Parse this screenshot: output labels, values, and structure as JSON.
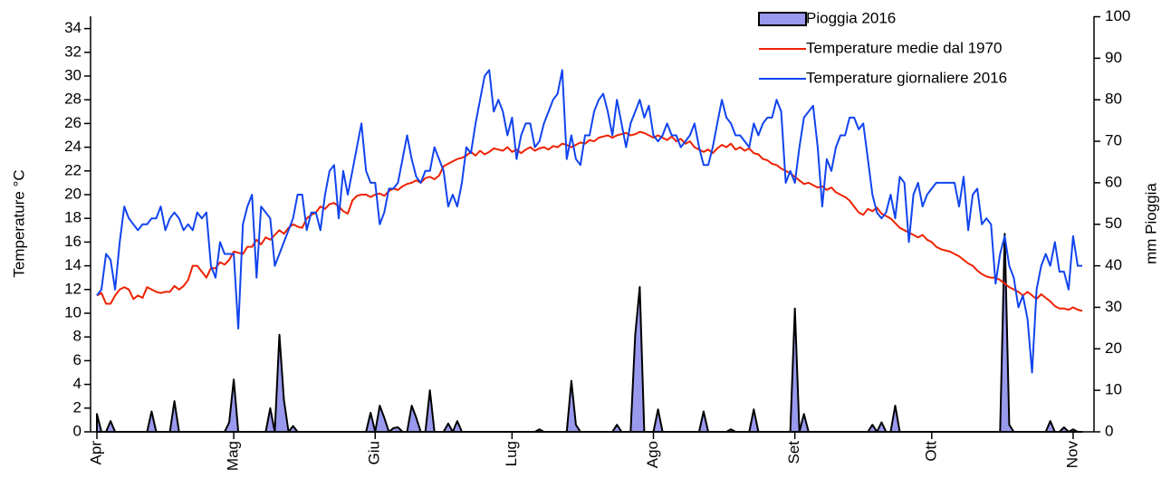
{
  "chart_data": {
    "type": "line",
    "ylabel": "Temperature °C",
    "y2label": "mm Pioggia",
    "xlim": [
      0,
      216
    ],
    "xticks": [
      {
        "value": 0,
        "label": "Apr"
      },
      {
        "value": 30,
        "label": "Mag"
      },
      {
        "value": 61,
        "label": "Giu"
      },
      {
        "value": 91,
        "label": "Lug"
      },
      {
        "value": 122,
        "label": "Ago"
      },
      {
        "value": 153,
        "label": "Set"
      },
      {
        "value": 183,
        "label": "Ott"
      },
      {
        "value": 214,
        "label": "Nov"
      }
    ],
    "ylim": [
      0,
      35
    ],
    "yticks": [
      0,
      2,
      4,
      6,
      8,
      10,
      12,
      14,
      16,
      18,
      20,
      22,
      24,
      26,
      28,
      30,
      32,
      34
    ],
    "y2lim": [
      0,
      100
    ],
    "y2ticks": [
      0,
      10,
      20,
      30,
      40,
      50,
      60,
      70,
      80,
      90,
      100
    ],
    "legend": "top-right",
    "series": [
      {
        "name": "Pioggia 2016",
        "type": "area",
        "axis": "y2",
        "color": "#9999ee",
        "values": [
          4.3,
          0,
          0,
          2.6,
          0,
          0,
          0,
          0,
          0,
          0,
          0,
          0,
          4.9,
          0,
          0,
          0,
          0,
          7.4,
          0,
          0,
          0,
          0,
          0,
          0,
          0,
          0,
          0,
          0,
          0,
          2.3,
          12.6,
          0,
          0,
          0,
          0,
          0,
          0,
          0,
          5.7,
          0,
          23.4,
          7.7,
          0,
          1.4,
          0,
          0,
          0,
          0,
          0,
          0,
          0,
          0,
          0,
          0,
          0,
          0,
          0,
          0,
          0,
          0,
          4.6,
          0,
          6.3,
          3.4,
          0,
          0.9,
          1.1,
          0,
          0,
          6.3,
          3.4,
          0,
          0,
          10,
          0,
          0,
          0,
          2,
          0,
          2.6,
          0,
          0,
          0,
          0,
          0,
          0,
          0,
          0,
          0,
          0,
          0,
          0,
          0,
          0,
          0,
          0,
          0,
          0.6,
          0,
          0,
          0,
          0,
          0,
          0,
          12.3,
          1.7,
          0,
          0,
          0,
          0,
          0,
          0,
          0,
          0,
          1.7,
          0,
          0,
          0,
          23.4,
          34.9,
          0,
          0,
          0,
          5.4,
          0,
          0,
          0,
          0,
          0,
          0,
          0,
          0,
          0,
          4.9,
          0,
          0,
          0,
          0,
          0,
          0.6,
          0,
          0,
          0,
          0,
          5.4,
          0,
          0,
          0,
          0,
          0,
          0,
          0,
          0,
          29.7,
          0,
          4.3,
          0,
          0,
          0,
          0,
          0,
          0,
          0,
          0,
          0,
          0,
          0,
          0,
          0,
          0,
          1.7,
          0,
          2.3,
          0,
          0,
          6.3,
          0,
          0,
          0,
          0,
          0,
          0,
          0,
          0,
          0,
          0,
          0,
          0,
          0,
          0,
          0,
          0,
          0,
          0,
          0,
          0,
          0,
          0,
          0,
          47.7,
          1.7,
          0,
          0,
          0,
          0,
          0,
          0,
          0,
          0,
          2.6,
          0,
          0,
          1.1,
          0,
          0.6,
          0,
          0
        ]
      },
      {
        "name": "Temperature medie dal 1970",
        "color": "#ee2200",
        "values": [
          11.5,
          11.7,
          10.8,
          10.8,
          11.5,
          12,
          12.2,
          12,
          11.2,
          11.5,
          11.3,
          12.2,
          12,
          11.8,
          11.7,
          11.8,
          11.8,
          12.3,
          12,
          12.3,
          12.8,
          14,
          14,
          13.5,
          13,
          13.8,
          13.8,
          14.3,
          14.1,
          14.5,
          15.2,
          15.1,
          15,
          15.6,
          15.6,
          16.2,
          15.8,
          16.4,
          16.2,
          16.6,
          17,
          16.7,
          17.2,
          17.5,
          17.3,
          17.2,
          18,
          18.3,
          18.5,
          19,
          18.8,
          19.2,
          19.3,
          19,
          18.6,
          18.4,
          19.5,
          19.9,
          20,
          20,
          19.8,
          20,
          20.1,
          19.9,
          20.3,
          20.5,
          20.4,
          20.7,
          20.9,
          21,
          21.2,
          21,
          21.4,
          21.5,
          21.3,
          21.6,
          22.4,
          22.6,
          22.8,
          23,
          23.1,
          23.3,
          23.6,
          23.3,
          23.7,
          23.4,
          23.6,
          23.9,
          23.8,
          23.7,
          24,
          23.6,
          23.8,
          23.5,
          23.8,
          24,
          23.7,
          23.9,
          24,
          23.8,
          24.1,
          24,
          24.3,
          24.2,
          24,
          24.2,
          24.4,
          24.3,
          24.6,
          24.5,
          24.8,
          24.9,
          25,
          24.8,
          25,
          25.1,
          25.2,
          25,
          25.1,
          25.3,
          25.2,
          25,
          24.8,
          25,
          24.8,
          24.6,
          24.9,
          24.5,
          24.7,
          24.3,
          24.5,
          24,
          23.8,
          23.6,
          23.8,
          23.5,
          23.9,
          24.2,
          24,
          24.3,
          23.8,
          24,
          23.7,
          23.9,
          23.5,
          23.4,
          23,
          22.9,
          22.6,
          22.5,
          22.2,
          22,
          21.8,
          21.5,
          21.2,
          20.9,
          21,
          20.8,
          20.6,
          20.7,
          20.4,
          20.6,
          20.2,
          20,
          19.8,
          19.5,
          19,
          18.5,
          18.3,
          18.8,
          18.6,
          18.9,
          18.4,
          18.2,
          18,
          17.6,
          17.2,
          17,
          16.8,
          16.6,
          16.4,
          16.6,
          16.2,
          16,
          15.6,
          15.4,
          15.3,
          15.2,
          15,
          14.8,
          14.5,
          14.2,
          14,
          13.6,
          13.3,
          13.1,
          13,
          13,
          12.8,
          12.5,
          12.2,
          12,
          11.8,
          11.5,
          11.8,
          11.5,
          11.2,
          11.6,
          11.3,
          11,
          10.6,
          10.4,
          10.4,
          10.3,
          10.5,
          10.3,
          10.2
        ]
      },
      {
        "name": "Temperature giornaliere 2016",
        "color": "#1144ee",
        "values": [
          11.5,
          12,
          15,
          14.5,
          12,
          16,
          19,
          18,
          17.5,
          17,
          17.5,
          17.5,
          18,
          18,
          19,
          17,
          18,
          18.5,
          18,
          17,
          17.5,
          17,
          18.5,
          18,
          18.5,
          14,
          13,
          16,
          15,
          15,
          15,
          8.7,
          17.5,
          19,
          20,
          13,
          19,
          18.5,
          18,
          14,
          15,
          16,
          17,
          18,
          20,
          20,
          17,
          18.5,
          18.5,
          17,
          20,
          22,
          22.5,
          18,
          22,
          20,
          22,
          24,
          26,
          22,
          21,
          21,
          17.5,
          18.5,
          20.5,
          20.5,
          21,
          23,
          25,
          23,
          21.5,
          21,
          22,
          22,
          24,
          23,
          22,
          19,
          20,
          19,
          21,
          24,
          23.5,
          26,
          28,
          30,
          30.5,
          27,
          28,
          27,
          25,
          26.5,
          23,
          25,
          26,
          26,
          24,
          24.5,
          26,
          27,
          28,
          28.5,
          30.5,
          23,
          25,
          23,
          22.5,
          25,
          25,
          27,
          28,
          28.5,
          27,
          25,
          28,
          26,
          24,
          26,
          27,
          28,
          26.5,
          27.5,
          25,
          24.5,
          25,
          26,
          25,
          25,
          24,
          24.5,
          25,
          26,
          24,
          22.5,
          22.5,
          24,
          26,
          28,
          26.5,
          26,
          25,
          25,
          24.5,
          24,
          26,
          25,
          26,
          26.5,
          26.5,
          28,
          27,
          21,
          22,
          21,
          24,
          26.5,
          27,
          27.5,
          24,
          19,
          23,
          22,
          24,
          25,
          25,
          26.5,
          26.5,
          25.5,
          26,
          23,
          20,
          18.5,
          18,
          18.5,
          20,
          18,
          21.5,
          21,
          16,
          20,
          21,
          19,
          20,
          20.5,
          21,
          21,
          21,
          21,
          21,
          19,
          21.5,
          17,
          20,
          20.5,
          17.5,
          18,
          17.5,
          12.5,
          15,
          16.5,
          14,
          13,
          10.5,
          11.5,
          9.5,
          5,
          12,
          14,
          15,
          14,
          16,
          13.5,
          13.5,
          12,
          16.5,
          14,
          14
        ]
      }
    ]
  }
}
